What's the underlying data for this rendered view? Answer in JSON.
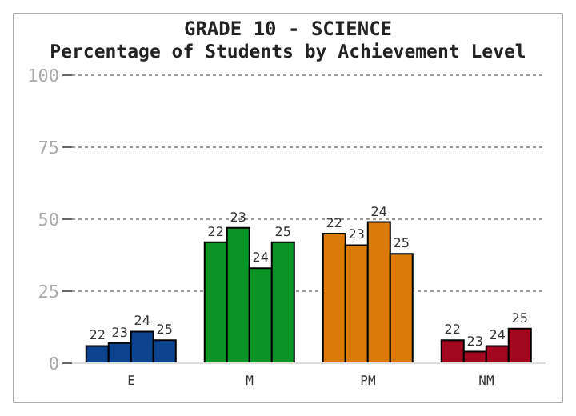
{
  "chart_data": {
    "type": "bar",
    "title": "GRADE 10 - SCIENCE",
    "subtitle": "Percentage of Students by Achievement Level",
    "categories": [
      "E",
      "M",
      "PM",
      "NM"
    ],
    "series": [
      {
        "name": "22",
        "colors": [
          "#0d428f",
          "#0b9426",
          "#d97b06",
          "#a3061f"
        ],
        "values": [
          6,
          42,
          45,
          8
        ]
      },
      {
        "name": "23",
        "colors": [
          "#0d428f",
          "#0b9426",
          "#d97b06",
          "#a3061f"
        ],
        "values": [
          7,
          47,
          41,
          4
        ]
      },
      {
        "name": "24",
        "colors": [
          "#0d428f",
          "#0b9426",
          "#d97b06",
          "#a3061f"
        ],
        "values": [
          11,
          33,
          49,
          6
        ]
      },
      {
        "name": "25",
        "colors": [
          "#0d428f",
          "#0b9426",
          "#d97b06",
          "#a3061f"
        ],
        "values": [
          8,
          42,
          38,
          12
        ]
      }
    ],
    "ylim": [
      0,
      100
    ],
    "yticks": [
      0,
      25,
      50,
      75,
      100
    ],
    "grid": "y"
  }
}
